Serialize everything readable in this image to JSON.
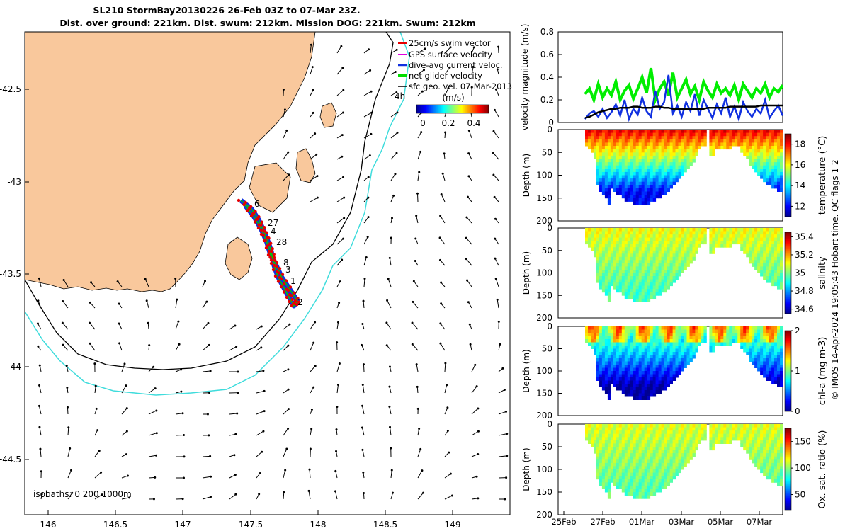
{
  "header": {
    "title_line1": "SL210 StormBay20130226 26-Feb 03Z to 07-Mar 23Z.",
    "title_line2": "Dist. over ground: 221km. Dist. swum: 212km. Mission DOG: 221km. Swum: 212km"
  },
  "map": {
    "lon_ticks": [
      "146",
      "146.5",
      "147",
      "147.5",
      "148",
      "148.5",
      "149"
    ],
    "lat_ticks": [
      "-42.5",
      "-43",
      "-43.5",
      "-44",
      "-44.5"
    ],
    "lon_range": [
      145.85,
      149.45
    ],
    "lat_range": [
      -44.8,
      -42.2
    ],
    "isobath_label": "isobaths: 0   200  1000m",
    "hour_label": "4h",
    "day_markers": [
      "6",
      "27",
      "4",
      "28",
      "8",
      "3",
      "1",
      "2"
    ],
    "legend": [
      "25cm/s swim vector",
      "GPS surface velocity",
      "dive-avg current veloc.",
      "net glider velocity",
      "sfc geo. vel. 07-Mar-2013"
    ],
    "colorbar_title": "(m/s)",
    "colorbar_ticks": [
      "0",
      "0.2",
      "0.4"
    ],
    "colors": {
      "land": "#f9c89c",
      "isobath_200": "#000000",
      "isobath_1000": "#3fdcdc",
      "track_swim": "#e60000",
      "track_dive": "#1030e0",
      "track_net": "#00dd00"
    }
  },
  "chart_data": [
    {
      "type": "line",
      "ylabel": "velocity magnitude (m/s)",
      "ylim": [
        0,
        0.8
      ],
      "yticks": [
        "0",
        "0.2",
        "0.4",
        "0.6",
        "0.8"
      ],
      "series": [
        {
          "name": "net glider velocity",
          "color": "#00ee00",
          "values": [
            0.25,
            0.3,
            0.2,
            0.34,
            0.22,
            0.3,
            0.24,
            0.36,
            0.2,
            0.28,
            0.33,
            0.21,
            0.3,
            0.4,
            0.26,
            0.48,
            0.2,
            0.3,
            0.36,
            0.24,
            0.44,
            0.22,
            0.3,
            0.38,
            0.25,
            0.32,
            0.2,
            0.36,
            0.28,
            0.22,
            0.34,
            0.26,
            0.3,
            0.24,
            0.33,
            0.2,
            0.34,
            0.28,
            0.22,
            0.3,
            0.26,
            0.34,
            0.22,
            0.3,
            0.27,
            0.33
          ]
        },
        {
          "name": "dive-avg current veloc.",
          "color": "#1030e0",
          "values": [
            0.03,
            0.08,
            0.1,
            0.05,
            0.12,
            0.04,
            0.09,
            0.16,
            0.06,
            0.2,
            0.03,
            0.12,
            0.07,
            0.22,
            0.1,
            0.05,
            0.28,
            0.12,
            0.18,
            0.42,
            0.08,
            0.15,
            0.05,
            0.18,
            0.1,
            0.25,
            0.06,
            0.2,
            0.12,
            0.04,
            0.16,
            0.08,
            0.22,
            0.05,
            0.14,
            0.03,
            0.18,
            0.1,
            0.05,
            0.12,
            0.08,
            0.2,
            0.04,
            0.1,
            0.15,
            0.06
          ]
        },
        {
          "name": "sfc geo. vel.",
          "color": "#000000",
          "values": [
            0.04,
            0.05,
            0.07,
            0.09,
            0.1,
            0.11,
            0.12,
            0.12,
            0.13,
            0.13,
            0.13,
            0.14,
            0.14,
            0.13,
            0.13,
            0.13,
            0.14,
            0.14,
            0.13,
            0.13,
            0.12,
            0.12,
            0.12,
            0.12,
            0.12,
            0.12,
            0.12,
            0.12,
            0.13,
            0.13,
            0.13,
            0.13,
            0.13,
            0.14,
            0.14,
            0.14,
            0.14,
            0.14,
            0.14,
            0.14,
            0.15,
            0.15,
            0.15,
            0.15,
            0.15,
            0.15
          ]
        }
      ]
    },
    {
      "type": "heatmap",
      "ylabel": "Depth (m)",
      "cbar_label": "temperature (°C)",
      "cbar_ticks": [
        "12",
        "14",
        "16",
        "18"
      ],
      "vmin": 11,
      "vmax": 19,
      "top_val": 18,
      "bottom_val": 12
    },
    {
      "type": "heatmap",
      "ylabel": "Depth (m)",
      "cbar_label": "salinity",
      "cbar_ticks": [
        "34.6",
        "34.8",
        "35",
        "35.2",
        "35.4"
      ],
      "vmin": 34.55,
      "vmax": 35.45,
      "top_val": 35.1,
      "bottom_val": 34.95
    },
    {
      "type": "heatmap",
      "ylabel": "Depth (m)",
      "cbar_label": "chl-a (mg m-3)",
      "cbar_ticks": [
        "0",
        "1",
        "2"
      ],
      "vmin": 0,
      "vmax": 2,
      "top_val": 1.1,
      "bottom_val": 0.05
    },
    {
      "type": "heatmap",
      "ylabel": "Depth (m)",
      "cbar_label": "Ox. sat. ratio (%)",
      "cbar_ticks": [
        "50",
        "100",
        "150"
      ],
      "vmin": 20,
      "vmax": 175,
      "top_val": 112,
      "bottom_val": 92
    }
  ],
  "depth_ticks": [
    "0",
    "50",
    "100",
    "150",
    "200"
  ],
  "time_axis": {
    "ticks": [
      "25Feb",
      "27Feb",
      "01Mar",
      "03Mar",
      "05Mar",
      "07Mar"
    ]
  },
  "side_note": "© IMOS 14-Apr-2024 19:05:43 Hobart time. QC flags 1  2"
}
